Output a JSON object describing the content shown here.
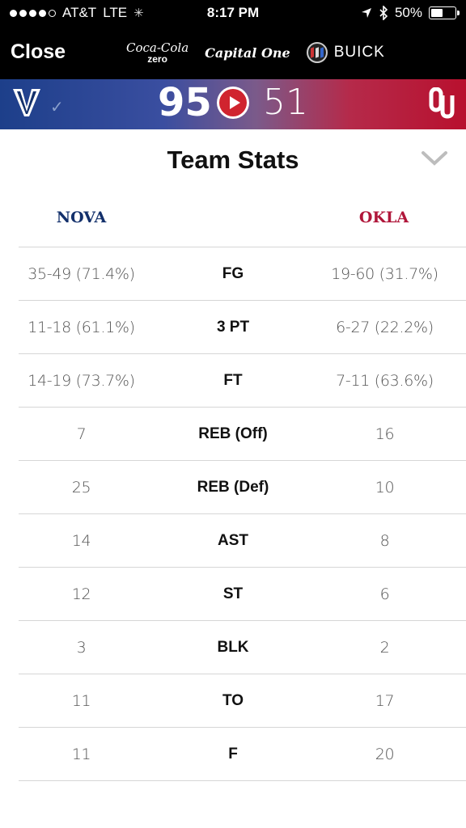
{
  "status_bar": {
    "carrier": "AT&T",
    "network": "LTE",
    "time": "8:17 PM",
    "battery": "50%",
    "battery_level": 0.5,
    "icons": [
      "signal-dots-icon",
      "loading-spinner-icon",
      "location-arrow-icon",
      "bluetooth-icon",
      "battery-icon"
    ]
  },
  "nav": {
    "close_label": "Close",
    "sponsors": {
      "coke_line1": "Coca-Cola",
      "coke_line2": "zero",
      "capital_one": "Capital One",
      "buick": "BUICK"
    }
  },
  "scoreboard": {
    "home_score": "95",
    "away_score": "51",
    "home_logo": "villanova-v-logo",
    "away_logo": "oklahoma-ou-logo",
    "colors": {
      "home": "#1d3f8a",
      "away": "#b8102e",
      "play": "#d0242f"
    }
  },
  "team_stats": {
    "title": "Team Stats",
    "home_team": "NOVA",
    "away_team": "OKLA",
    "rows": [
      {
        "label": "FG",
        "home": "35-49 (71.4%)",
        "away": "19-60 (31.7%)"
      },
      {
        "label": "3 PT",
        "home": "11-18 (61.1%)",
        "away": "6-27 (22.2%)"
      },
      {
        "label": "FT",
        "home": "14-19 (73.7%)",
        "away": "7-11 (63.6%)"
      },
      {
        "label": "REB (Off)",
        "home": "7",
        "away": "16"
      },
      {
        "label": "REB (Def)",
        "home": "25",
        "away": "10"
      },
      {
        "label": "AST",
        "home": "14",
        "away": "8"
      },
      {
        "label": "ST",
        "home": "12",
        "away": "6"
      },
      {
        "label": "BLK",
        "home": "3",
        "away": "2"
      },
      {
        "label": "TO",
        "home": "11",
        "away": "17"
      },
      {
        "label": "F",
        "home": "11",
        "away": "20"
      }
    ]
  }
}
